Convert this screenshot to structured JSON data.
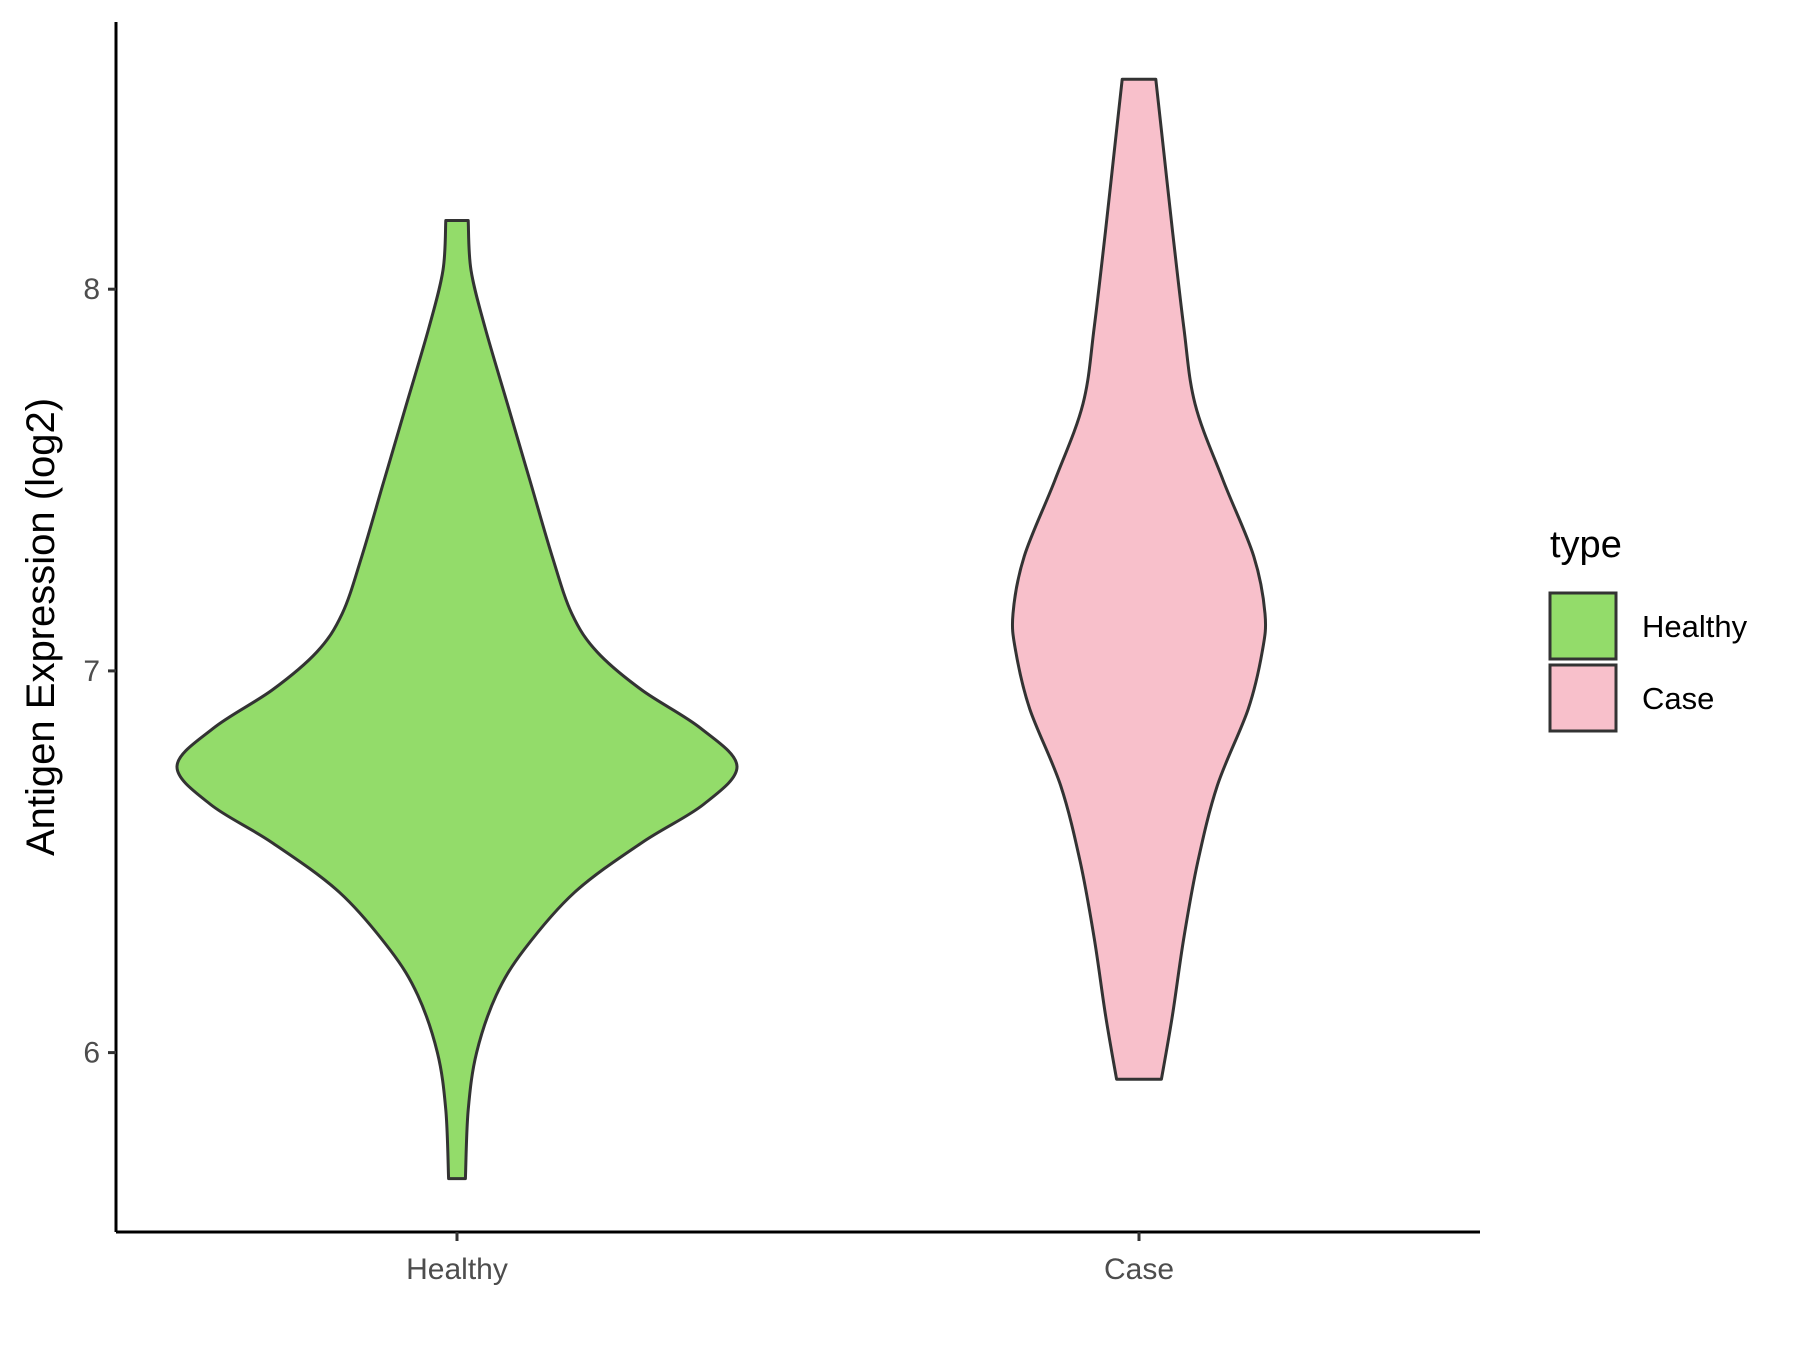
{
  "chart_data": {
    "type": "violin",
    "title": "",
    "xlabel": "",
    "ylabel": "Antigen Expression (log2)",
    "ylim": [
      5.53,
      8.7
    ],
    "yticks": [
      6,
      7,
      8
    ],
    "categories": [
      "Healthy",
      "Case"
    ],
    "grid": false,
    "legend": {
      "title": "type",
      "placement": "right",
      "entries": [
        "Healthy",
        "Case"
      ]
    },
    "series": [
      {
        "category": "Healthy",
        "color": "#93DC6A",
        "min": 5.67,
        "max": 8.18,
        "density": [
          [
            5.67,
            0.03
          ],
          [
            5.85,
            0.04
          ],
          [
            6.0,
            0.07
          ],
          [
            6.15,
            0.14
          ],
          [
            6.27,
            0.24
          ],
          [
            6.42,
            0.42
          ],
          [
            6.55,
            0.66
          ],
          [
            6.65,
            0.88
          ],
          [
            6.75,
            1.0
          ],
          [
            6.85,
            0.87
          ],
          [
            6.95,
            0.66
          ],
          [
            7.05,
            0.5
          ],
          [
            7.15,
            0.41
          ],
          [
            7.3,
            0.34
          ],
          [
            7.5,
            0.26
          ],
          [
            7.7,
            0.18
          ],
          [
            7.9,
            0.1
          ],
          [
            8.05,
            0.05
          ],
          [
            8.18,
            0.04
          ]
        ]
      },
      {
        "category": "Case",
        "color": "#F8C0CB",
        "min": 5.93,
        "max": 8.55,
        "density": [
          [
            5.93,
            0.08
          ],
          [
            6.1,
            0.12
          ],
          [
            6.3,
            0.16
          ],
          [
            6.5,
            0.21
          ],
          [
            6.7,
            0.28
          ],
          [
            6.9,
            0.39
          ],
          [
            7.05,
            0.44
          ],
          [
            7.15,
            0.45
          ],
          [
            7.3,
            0.41
          ],
          [
            7.5,
            0.3
          ],
          [
            7.7,
            0.2
          ],
          [
            7.9,
            0.16
          ],
          [
            8.15,
            0.12
          ],
          [
            8.35,
            0.09
          ],
          [
            8.55,
            0.06
          ]
        ]
      }
    ]
  }
}
